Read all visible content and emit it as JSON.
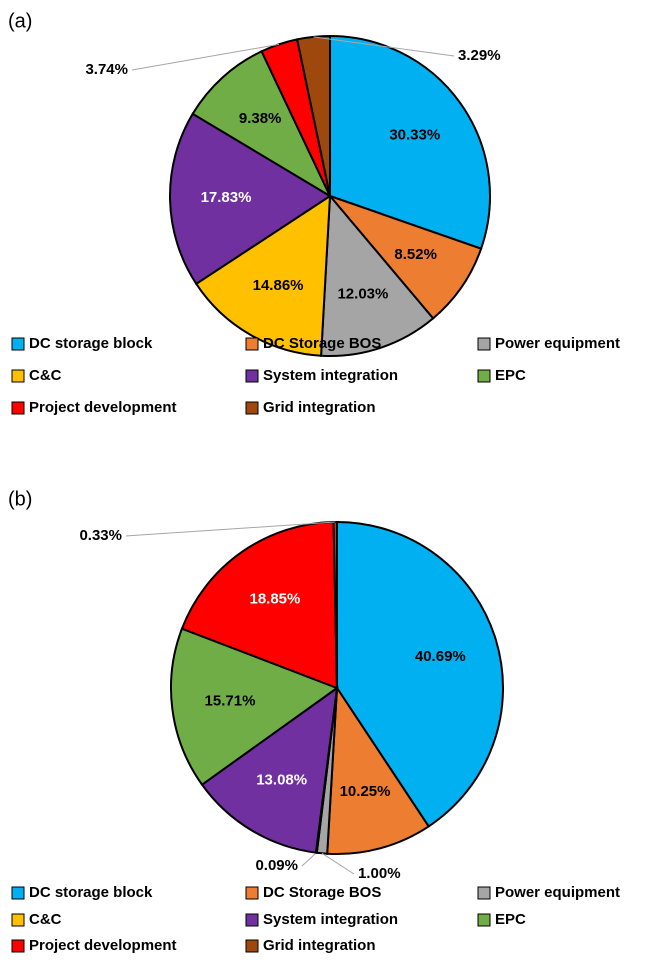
{
  "chart_data": [
    {
      "type": "pie",
      "title": "(a)",
      "categories": [
        "DC storage block",
        "DC Storage BOS",
        "Power equipment",
        "C&C",
        "System integration",
        "EPC",
        "Project development",
        "Grid integration"
      ],
      "values": [
        30.33,
        8.52,
        12.03,
        14.86,
        17.83,
        9.38,
        3.74,
        3.29
      ],
      "value_labels": [
        "30.33%",
        "8.52%",
        "12.03%",
        "14.86%",
        "17.83%",
        "9.38%",
        "3.74%",
        "3.29%"
      ],
      "colors": [
        "#00b0f0",
        "#ed7d31",
        "#a5a5a5",
        "#ffc000",
        "#7030a0",
        "#70ad47",
        "#ff0000",
        "#9e480e"
      ]
    },
    {
      "type": "pie",
      "title": "(b)",
      "categories": [
        "DC storage block",
        "DC Storage BOS",
        "Power equipment",
        "C&C",
        "System integration",
        "EPC",
        "Project development",
        "Grid integration"
      ],
      "values": [
        40.69,
        10.25,
        1.0,
        0.09,
        13.08,
        15.71,
        18.85,
        0.33
      ],
      "value_labels": [
        "40.69%",
        "10.25%",
        "1.00%",
        "0.09%",
        "13.08%",
        "15.71%",
        "18.85%",
        "0.33%"
      ],
      "colors": [
        "#00b0f0",
        "#ed7d31",
        "#a5a5a5",
        "#ffc000",
        "#7030a0",
        "#70ad47",
        "#ff0000",
        "#9e480e"
      ]
    }
  ]
}
